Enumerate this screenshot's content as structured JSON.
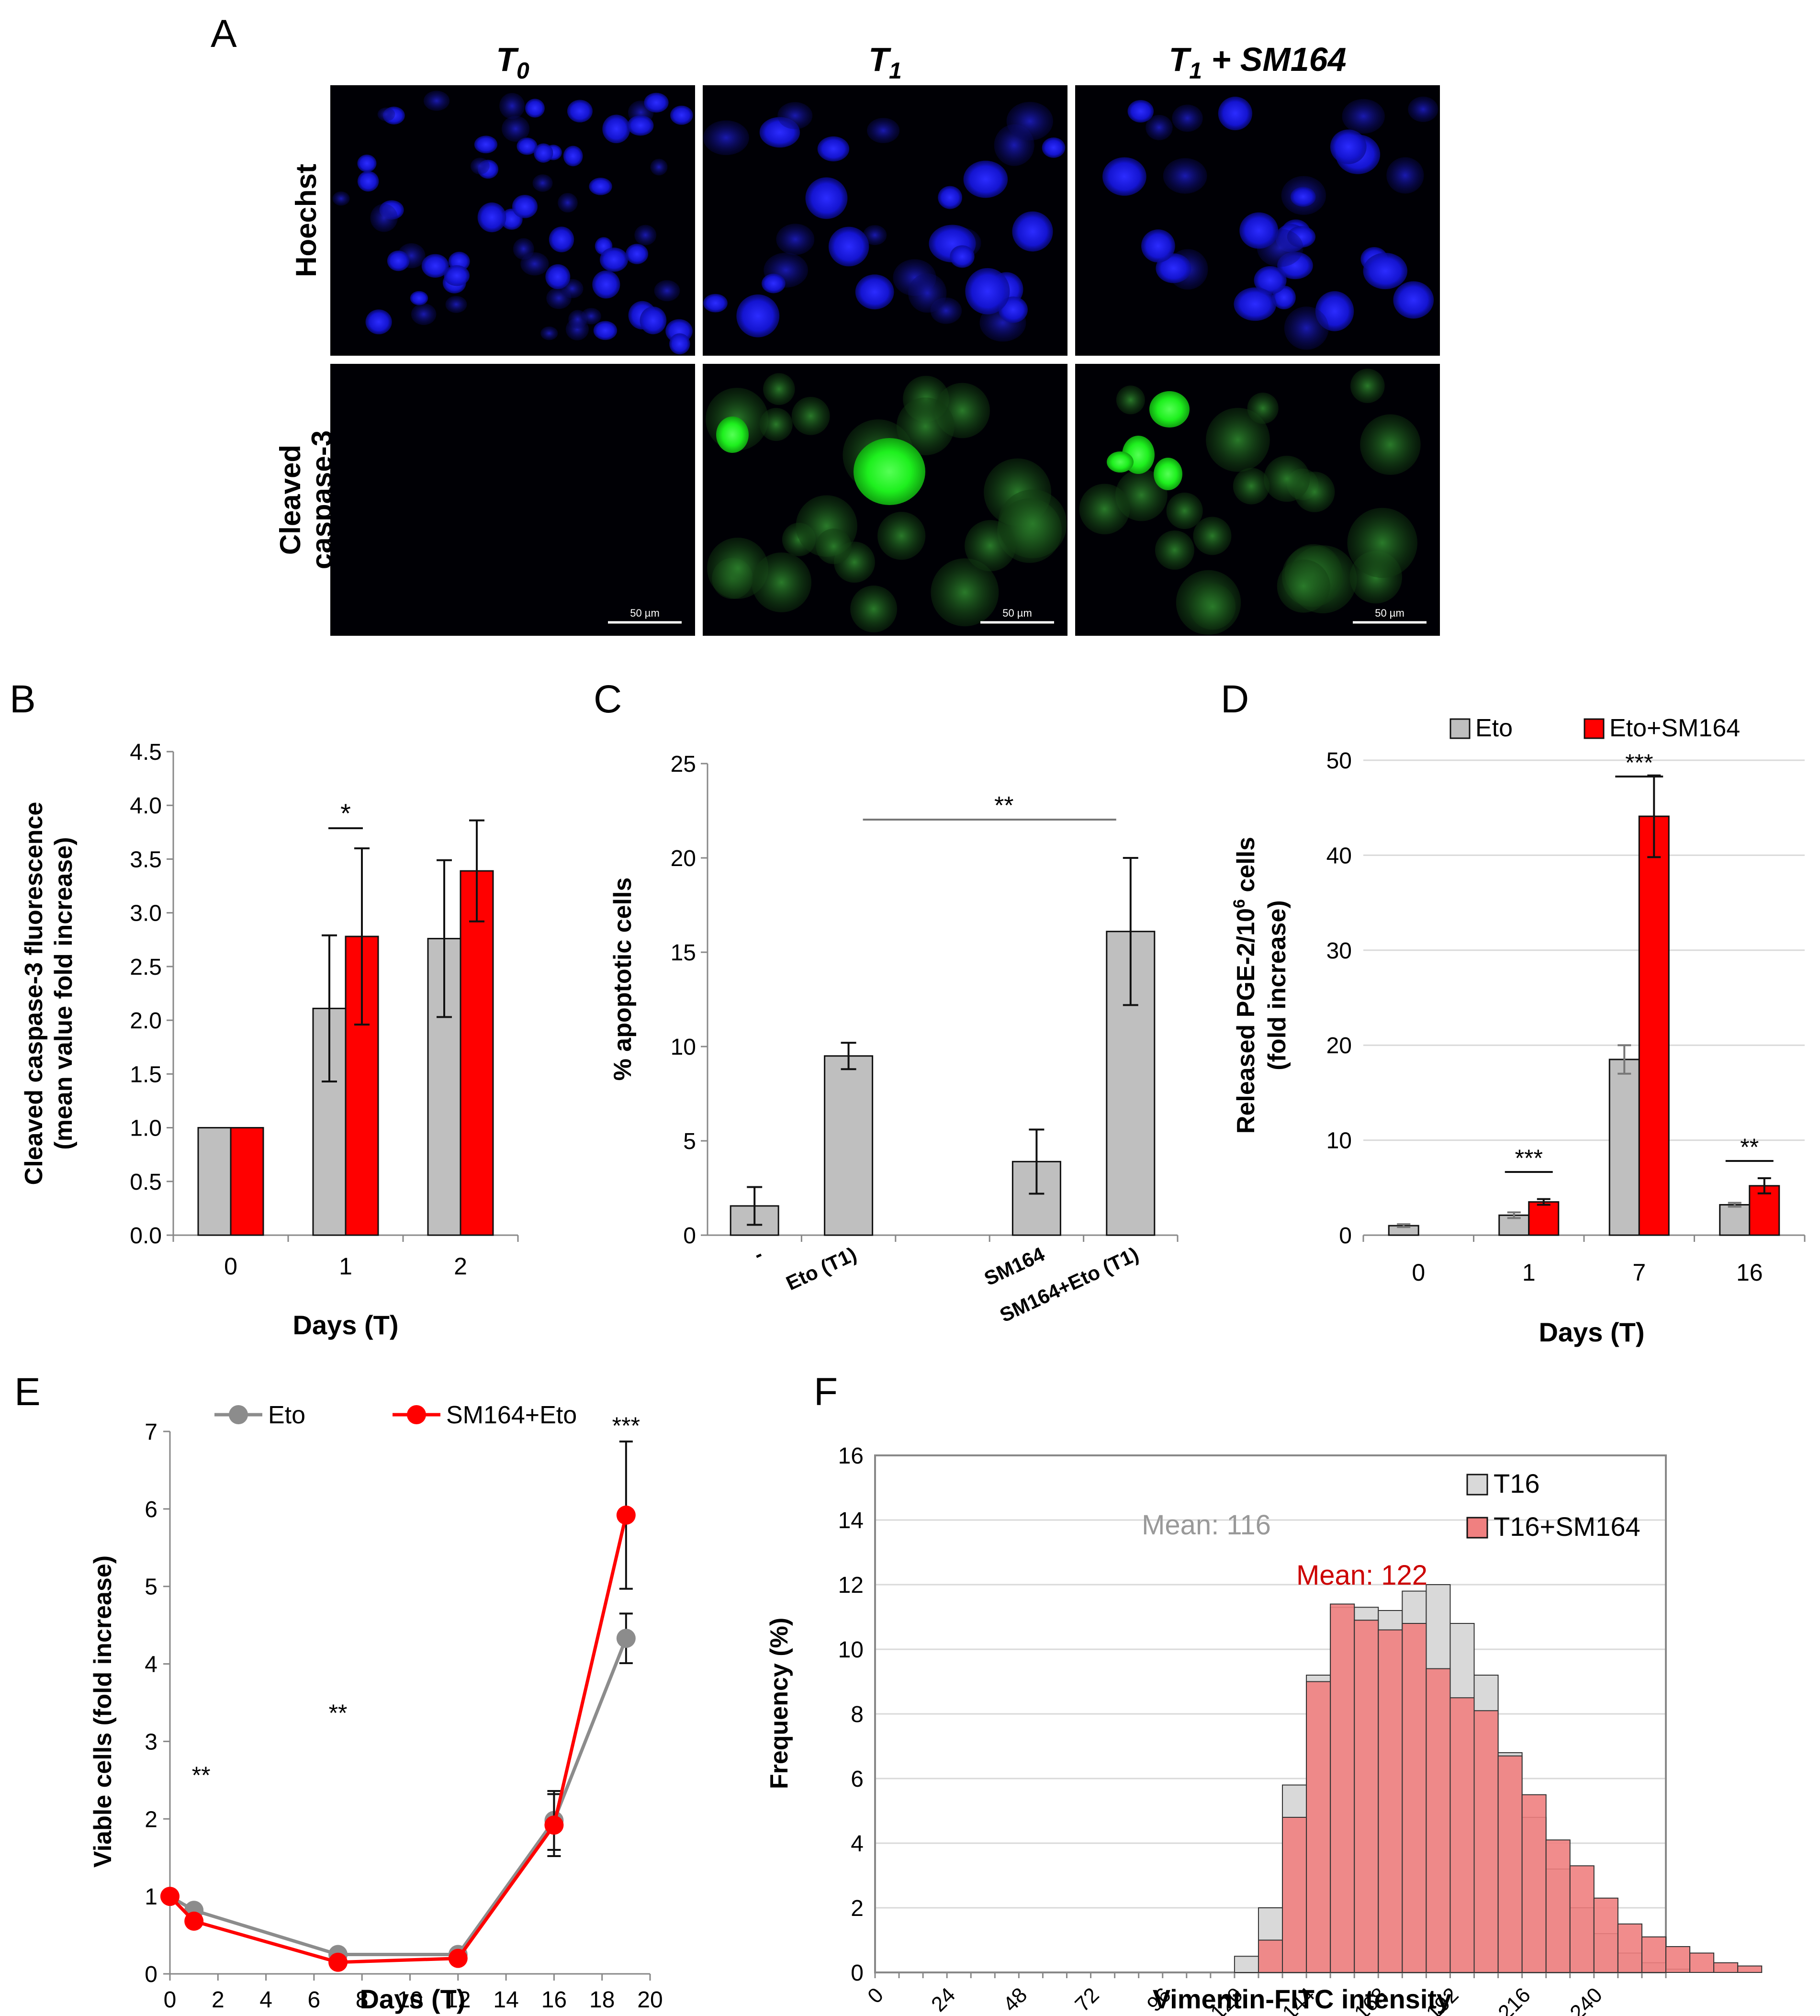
{
  "panel_letters": {
    "A": "A",
    "B": "B",
    "C": "C",
    "D": "D",
    "E": "E",
    "F": "F"
  },
  "panel_a": {
    "columns": [
      {
        "base": "T",
        "sub": "0",
        "suffix": ""
      },
      {
        "base": "T",
        "sub": "1",
        "suffix": ""
      },
      {
        "base": "T",
        "sub": "1",
        "suffix": " + SM164"
      }
    ],
    "rows": [
      {
        "lines": [
          "Hoechst"
        ]
      },
      {
        "lines": [
          "Cleaved",
          "caspase-3"
        ]
      }
    ],
    "scale_bar_label": "50 µm",
    "colors": {
      "hoechst": "#0b0bd9",
      "caspase": "#22e022",
      "background": "#000005"
    }
  },
  "chart_data": [
    {
      "panel": "B",
      "type": "bar",
      "categories": [
        "0",
        "1",
        "2"
      ],
      "series": [
        {
          "name": "Eto",
          "color": "#bfbfbf",
          "values": [
            1.0,
            2.11,
            2.76
          ],
          "errors": [
            0,
            0.68,
            0.73
          ]
        },
        {
          "name": "Eto+SM164",
          "color": "#ff0000",
          "values": [
            1.0,
            2.78,
            3.39
          ],
          "errors": [
            0,
            0.82,
            0.47
          ]
        }
      ],
      "ylim": [
        0,
        4.5
      ],
      "yticks": [
        "0.0",
        "0.5",
        "1.0",
        "1.5",
        "2.0",
        "2.5",
        "3.0",
        "3.5",
        "4.0",
        "4.5"
      ],
      "ylabel_lines": [
        "Cleaved caspase-3 fluorescence",
        "(mean value fold increase)"
      ],
      "xlabel": "Days (T)",
      "annotations": [
        {
          "text": "*",
          "category": "1"
        }
      ]
    },
    {
      "panel": "C",
      "type": "bar",
      "categories": [
        "-",
        "Eto (T1)",
        "",
        "SM164",
        "SM164+Eto (T1)"
      ],
      "values": [
        1.55,
        9.5,
        null,
        3.9,
        16.1
      ],
      "errors": [
        1.0,
        0.7,
        null,
        1.7,
        3.9
      ],
      "color": "#bfbfbf",
      "ylim": [
        0,
        25
      ],
      "yticks": [
        "0",
        "5",
        "10",
        "15",
        "20",
        "25"
      ],
      "ylabel": "% apoptotic cells",
      "annotations": [
        {
          "text": "**",
          "from": "Eto (T1)",
          "to": "SM164+Eto (T1)"
        }
      ]
    },
    {
      "panel": "D",
      "type": "bar",
      "categories": [
        "0",
        "1",
        "7",
        "16"
      ],
      "series": [
        {
          "name": "Eto",
          "color": "#bfbfbf",
          "values": [
            1.0,
            2.1,
            18.5,
            3.2
          ],
          "errors": [
            0.15,
            0.3,
            1.5,
            0.2
          ]
        },
        {
          "name": "Eto+SM164",
          "color": "#ff0000",
          "values": [
            null,
            3.5,
            44.1,
            5.2
          ],
          "errors": [
            null,
            0.3,
            4.3,
            0.8
          ]
        }
      ],
      "ylim": [
        0,
        50
      ],
      "yticks": [
        "0",
        "10",
        "20",
        "30",
        "40",
        "50"
      ],
      "ylabel_lines": [
        "Released PGE-2/10",
        "6",
        " cells",
        "(fold increase)"
      ],
      "xlabel": "Days (T)",
      "legend": [
        "Eto",
        "Eto+SM164"
      ],
      "annotations": [
        {
          "text": "***",
          "category": "1"
        },
        {
          "text": "***",
          "category": "7"
        },
        {
          "text": "**",
          "category": "16"
        }
      ]
    },
    {
      "panel": "E",
      "type": "line",
      "series": [
        {
          "name": "Eto",
          "color": "#8c8c8c",
          "x": [
            0,
            1,
            7,
            12,
            16,
            19
          ],
          "y": [
            1.0,
            0.82,
            0.25,
            0.25,
            1.98,
            4.33
          ],
          "errors": [
            0,
            0,
            0,
            0,
            0.38,
            0.32
          ]
        },
        {
          "name": "SM164+Eto",
          "color": "#ff0000",
          "x": [
            0,
            1,
            7,
            12,
            16,
            19
          ],
          "y": [
            1.0,
            0.68,
            0.15,
            0.2,
            1.92,
            5.92
          ],
          "errors": [
            0,
            0,
            0,
            0,
            0.4,
            0.95
          ]
        }
      ],
      "xlim": [
        0,
        20
      ],
      "ylim": [
        0,
        7
      ],
      "xticks": [
        "0",
        "2",
        "4",
        "6",
        "8",
        "10",
        "12",
        "14",
        "16",
        "18",
        "20"
      ],
      "yticks": [
        "0",
        "1",
        "2",
        "3",
        "4",
        "5",
        "6",
        "7"
      ],
      "xlabel": "Days (T)",
      "ylabel": "Viable cells (fold increase)",
      "legend": [
        "Eto",
        "SM164+Eto"
      ],
      "annotations": [
        {
          "text": "**",
          "x": 1
        },
        {
          "text": "**",
          "x": 7
        },
        {
          "text": "***",
          "x": 19
        }
      ]
    },
    {
      "panel": "F",
      "type": "histogram",
      "bin_width": 8,
      "bin_start": 0,
      "series": [
        {
          "name": "T16",
          "color": "#d9d9d9",
          "values": [
            0,
            0,
            0,
            0,
            0,
            0,
            0,
            0,
            0,
            0,
            0,
            0,
            0,
            0,
            0,
            0.5,
            2.0,
            5.8,
            9.2,
            11.3,
            11.3,
            11.2,
            11.8,
            12.0,
            10.8,
            9.2,
            6.8,
            4.8,
            3.2,
            2.0,
            1.2,
            0.6,
            0.3,
            0.1,
            0,
            0,
            0,
            0,
            0,
            0,
            0,
            0,
            0,
            0
          ]
        },
        {
          "name": "T16+SM164",
          "color": "#f08080",
          "values": [
            0,
            0,
            0,
            0,
            0,
            0,
            0,
            0,
            0,
            0,
            0,
            0,
            0,
            0,
            0,
            0,
            1.0,
            4.8,
            9.0,
            11.4,
            10.9,
            10.6,
            10.8,
            9.4,
            8.5,
            8.1,
            6.7,
            5.5,
            4.1,
            3.3,
            2.3,
            1.5,
            1.1,
            0.8,
            0.6,
            0.3,
            0.2,
            0,
            0,
            0,
            0,
            0,
            0,
            0
          ]
        }
      ],
      "xlim": [
        0,
        264
      ],
      "ylim": [
        0,
        16
      ],
      "xticks": [
        "0",
        "24",
        "48",
        "72",
        "96",
        "120",
        "144",
        "168",
        "192",
        "216",
        "240"
      ],
      "yticks": [
        "0",
        "2",
        "4",
        "6",
        "8",
        "10",
        "12",
        "14",
        "16"
      ],
      "xlabel": "Vimentin-FITC intensity",
      "ylabel": "Frequency (%)",
      "legend": [
        "T16",
        "T16+SM164"
      ],
      "annotations": [
        {
          "text": "Mean: 116",
          "color": "#999999"
        },
        {
          "text": "Mean: 122",
          "color": "#cc0000"
        }
      ]
    }
  ]
}
